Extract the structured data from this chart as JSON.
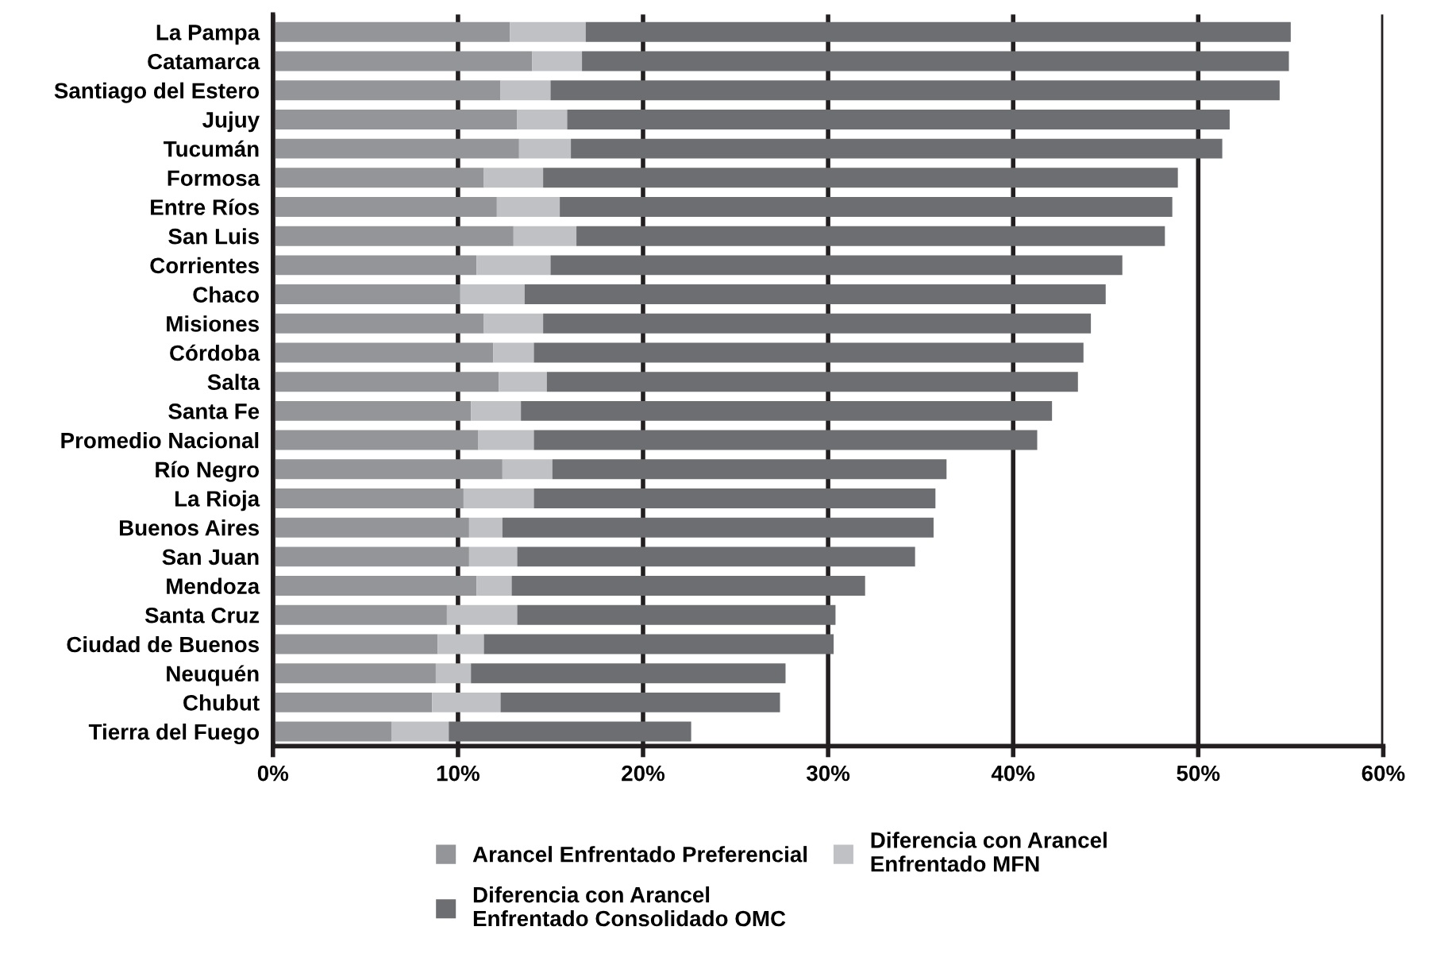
{
  "chart_data": {
    "type": "bar",
    "orientation": "horizontal",
    "stacked": true,
    "categories": [
      "La Pampa",
      "Catamarca",
      "Santiago del Estero",
      "Jujuy",
      "Tucumán",
      "Formosa",
      "Entre Ríos",
      "San Luis",
      "Corrientes",
      "Chaco",
      "Misiones",
      "Córdoba",
      "Salta",
      "Santa Fe",
      "Promedio Nacional",
      "Río Negro",
      "La Rioja",
      "Buenos Aires",
      "San Juan",
      "Mendoza",
      "Santa Cruz",
      "Ciudad de Buenos",
      "Neuquén",
      "Chubut",
      "Tierra del Fuego"
    ],
    "series": [
      {
        "name": "Arancel Enfrentado Preferencial",
        "color": "#939598",
        "values": [
          12.8,
          14.0,
          12.3,
          13.2,
          13.3,
          11.4,
          12.1,
          13.0,
          11.0,
          10.1,
          11.4,
          11.9,
          12.2,
          10.7,
          11.1,
          12.4,
          10.3,
          10.6,
          10.6,
          11.0,
          9.4,
          8.9,
          8.8,
          8.6,
          6.4
        ]
      },
      {
        "name": "Diferencia con Arancel Enfrentado MFN",
        "color": "#c0c1c4",
        "values": [
          4.1,
          2.7,
          2.7,
          2.7,
          2.8,
          3.2,
          3.4,
          3.4,
          4.0,
          3.5,
          3.2,
          2.2,
          2.6,
          2.7,
          3.0,
          2.7,
          3.8,
          1.8,
          2.6,
          1.9,
          3.8,
          2.5,
          1.9,
          3.7,
          3.1
        ]
      },
      {
        "name": "Diferencia con Arancel Enfrentado Consolidado OMC",
        "color": "#6d6e71",
        "values": [
          38.1,
          38.2,
          39.4,
          35.8,
          35.2,
          34.3,
          33.1,
          31.8,
          30.9,
          31.4,
          29.6,
          29.7,
          28.7,
          28.7,
          27.2,
          21.3,
          21.7,
          23.3,
          21.5,
          19.1,
          17.2,
          18.9,
          17.0,
          15.1,
          13.1
        ]
      }
    ],
    "xlim": [
      0,
      60
    ],
    "xticks": [
      {
        "value": 0,
        "label": "0%"
      },
      {
        "value": 10,
        "label": "10%"
      },
      {
        "value": 20,
        "label": "20%"
      },
      {
        "value": 30,
        "label": "30%"
      },
      {
        "value": 40,
        "label": "40%"
      },
      {
        "value": 50,
        "label": "50%"
      },
      {
        "value": 60,
        "label": "60%"
      }
    ],
    "grid": "x",
    "legend": "bottom"
  }
}
